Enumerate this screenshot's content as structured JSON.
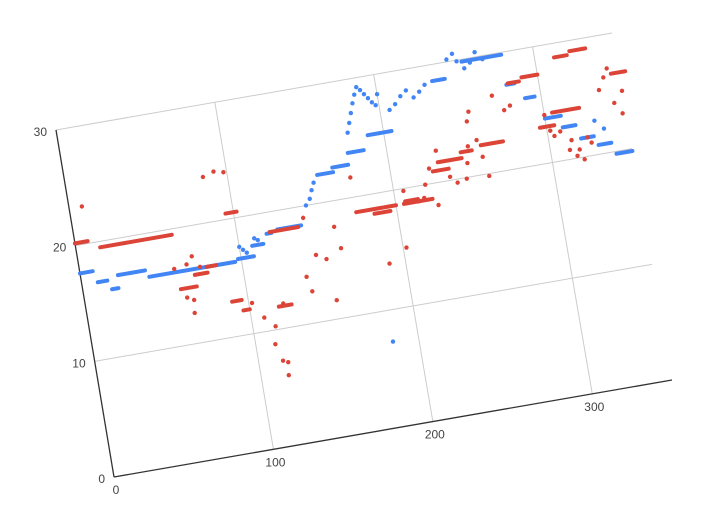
{
  "chart_data": {
    "type": "scatter",
    "title": "",
    "xlabel": "",
    "ylabel": "",
    "xlim": [
      0,
      350
    ],
    "ylim": [
      0,
      30
    ],
    "x_ticks": [
      {
        "value": 0,
        "label": "0"
      },
      {
        "value": 100,
        "label": "100"
      },
      {
        "value": 200,
        "label": "200"
      },
      {
        "value": 300,
        "label": "300"
      }
    ],
    "y_ticks": [
      {
        "value": 0,
        "label": "0"
      },
      {
        "value": 10,
        "label": "10"
      },
      {
        "value": 20,
        "label": "20"
      },
      {
        "value": 30,
        "label": "30"
      }
    ],
    "grid": true,
    "series": [
      {
        "name": "blue",
        "color": "#4285f4",
        "segments": [
          [
            0,
            8,
            17.6
          ],
          [
            10,
            16,
            16.6
          ],
          [
            18,
            22,
            15.8
          ],
          [
            23,
            40,
            16.9
          ],
          [
            42,
            96,
            16.3
          ],
          [
            98,
            108,
            16.5
          ],
          [
            108,
            115,
            17.4
          ],
          [
            118,
            121,
            18.2
          ],
          [
            125,
            140,
            18.4
          ],
          [
            155,
            165,
            22.4
          ],
          [
            165,
            175,
            22.8
          ],
          [
            176,
            186,
            23.8
          ],
          [
            190,
            205,
            25.0
          ],
          [
            235,
            243,
            28.6
          ],
          [
            255,
            280,
            29.8
          ],
          [
            280,
            285,
            27.2
          ],
          [
            290,
            296,
            25.8
          ],
          [
            300,
            310,
            23.8
          ],
          [
            310,
            318,
            22.8
          ],
          [
            320,
            328,
            21.6
          ],
          [
            330,
            338,
            20.8
          ],
          [
            340,
            350,
            19.8
          ]
        ],
        "points": [
          [
            100,
            17.5
          ],
          [
            102,
            17.2
          ],
          [
            104,
            16.9
          ],
          [
            110,
            18.0
          ],
          [
            112,
            17.8
          ],
          [
            145,
            20.0
          ],
          [
            148,
            20.5
          ],
          [
            150,
            21.2
          ],
          [
            152,
            21.8
          ],
          [
            178,
            25.5
          ],
          [
            180,
            26.3
          ],
          [
            182,
            27.1
          ],
          [
            184,
            27.9
          ],
          [
            186,
            28.6
          ],
          [
            188,
            29.2
          ],
          [
            190,
            28.9
          ],
          [
            192,
            28.5
          ],
          [
            194,
            28.1
          ],
          [
            196,
            27.7
          ],
          [
            198,
            27.4
          ],
          [
            200,
            28.3
          ],
          [
            206,
            26.8
          ],
          [
            210,
            27.2
          ],
          [
            214,
            27.8
          ],
          [
            218,
            28.2
          ],
          [
            222,
            27.5
          ],
          [
            226,
            27.9
          ],
          [
            230,
            28.4
          ],
          [
            246,
            30.2
          ],
          [
            250,
            30.6
          ],
          [
            252,
            29.9
          ],
          [
            256,
            29.2
          ],
          [
            260,
            29.6
          ],
          [
            264,
            30.4
          ],
          [
            268,
            29.7
          ],
          [
            330,
            22.9
          ],
          [
            335,
            22.1
          ],
          [
            184,
            7.3
          ]
        ]
      },
      {
        "name": "red",
        "color": "#db4437",
        "segments": [
          [
            0,
            8,
            20.2
          ],
          [
            15,
            60,
            19.5
          ],
          [
            95,
            102,
            20.5
          ],
          [
            120,
            138,
            18.3
          ],
          [
            175,
            200,
            18.7
          ],
          [
            205,
            223,
            18.7
          ],
          [
            230,
            245,
            21.7
          ],
          [
            245,
            252,
            22.2
          ],
          [
            258,
            272,
            22.5
          ],
          [
            305,
            322,
            24.2
          ],
          [
            345,
            354,
            26.6
          ],
          [
            60,
            70,
            14.8
          ],
          [
            70,
            78,
            15.8
          ],
          [
            78,
            84,
            16.3
          ],
          [
            90,
            96,
            13.0
          ],
          [
            96,
            100,
            12.1
          ],
          [
            118,
            126,
            11.9
          ],
          [
            186,
            196,
            18.3
          ],
          [
            206,
            214,
            18.9
          ],
          [
            226,
            236,
            21.0
          ],
          [
            296,
            305,
            23.1
          ],
          [
            281,
            288,
            27.3
          ],
          [
            290,
            300,
            27.6
          ],
          [
            312,
            320,
            28.8
          ],
          [
            322,
            332,
            29.1
          ]
        ],
        "points": [
          [
            8,
            23.2
          ],
          [
            58,
            16.6
          ],
          [
            66,
            16.8
          ],
          [
            70,
            17.4
          ],
          [
            74,
            16.4
          ],
          [
            63,
            14.0
          ],
          [
            66,
            12.6
          ],
          [
            67,
            13.7
          ],
          [
            85,
            23.9
          ],
          [
            92,
            24.2
          ],
          [
            98,
            24.0
          ],
          [
            102,
            12.6
          ],
          [
            108,
            11.2
          ],
          [
            112,
            8.8
          ],
          [
            114,
            10.3
          ],
          [
            115,
            7.3
          ],
          [
            117,
            6.0
          ],
          [
            118,
            7.1
          ],
          [
            121,
            12.1
          ],
          [
            138,
            14.0
          ],
          [
            140,
            12.7
          ],
          [
            142,
            19.0
          ],
          [
            146,
            15.7
          ],
          [
            152,
            15.2
          ],
          [
            154,
            11.6
          ],
          [
            160,
            17.8
          ],
          [
            162,
            15.9
          ],
          [
            175,
            21.7
          ],
          [
            190,
            13.9
          ],
          [
            202,
            15.0
          ],
          [
            206,
            19.8
          ],
          [
            214,
            18.7
          ],
          [
            218,
            18.9
          ],
          [
            220,
            20.0
          ],
          [
            224,
            21.3
          ],
          [
            226,
            18.1
          ],
          [
            230,
            22.7
          ],
          [
            236,
            20.3
          ],
          [
            240,
            19.7
          ],
          [
            246,
            19.9
          ],
          [
            248,
            21.2
          ],
          [
            250,
            22.6
          ],
          [
            252,
            24.7
          ],
          [
            254,
            25.5
          ],
          [
            256,
            23.0
          ],
          [
            258,
            21.5
          ],
          [
            260,
            19.8
          ],
          [
            270,
            26.5
          ],
          [
            276,
            25.1
          ],
          [
            280,
            25.4
          ],
          [
            300,
            24.1
          ],
          [
            302,
            22.7
          ],
          [
            304,
            22.2
          ],
          [
            308,
            22.5
          ],
          [
            312,
            20.8
          ],
          [
            314,
            21.6
          ],
          [
            316,
            20.2
          ],
          [
            318,
            20.7
          ],
          [
            320,
            19.8
          ],
          [
            324,
            21.6
          ],
          [
            326,
            21.1
          ],
          [
            336,
            25.4
          ],
          [
            340,
            26.4
          ],
          [
            343,
            27.1
          ],
          [
            344,
            24.1
          ],
          [
            350,
            25.0
          ],
          [
            348,
            23.1
          ],
          [
            333,
            35.0
          ]
        ]
      }
    ]
  }
}
